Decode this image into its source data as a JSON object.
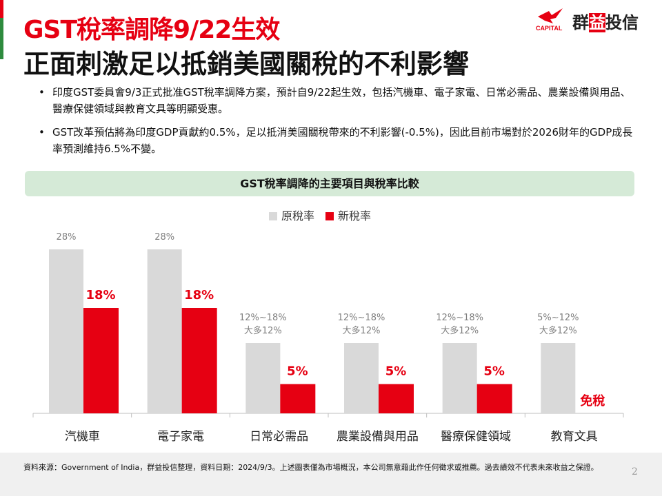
{
  "title_line1": "GST稅率調降9/22生效",
  "title_line2": "正面刺激足以抵銷美國關稅的不利影響",
  "logo": {
    "sub": "CAPITAL",
    "name_a": "群",
    "name_b": "益",
    "name_c": "投信"
  },
  "bullets": [
    "印度GST委員會9/3正式批准GST稅率調降方案，預計自9/22起生效，包括汽機車、電子家電、日常必需品、農業設備與用品、醫療保健領域與教育文具等明顯受惠。",
    "GST改革預估將為印度GDP貢獻約0.5%，足以抵消美國關稅帶來的不利影響(-0.5%)，因此目前市場對於2026財年的GDP成長率預測維持6.5%不變。"
  ],
  "chart_title": "GST稅率調降的主要項目與稅率比較",
  "colors": {
    "old": "#d9d9d9",
    "new": "#e60012"
  },
  "chart_data": {
    "type": "bar",
    "title": "GST稅率調降的主要項目與稅率比較",
    "categories": [
      "汽機車",
      "電子家電",
      "日常必需品",
      "農業設備與用品",
      "醫療保健領域",
      "教育文具"
    ],
    "series": [
      {
        "name": "原稅率",
        "values": [
          28,
          28,
          12,
          12,
          12,
          12
        ],
        "labels": [
          [
            "28%"
          ],
          [
            "28%"
          ],
          [
            "12%~18%",
            "大多12%"
          ],
          [
            "12%~18%",
            "大多12%"
          ],
          [
            "12%~18%",
            "大多12%"
          ],
          [
            "5%~12%",
            "大多12%"
          ]
        ]
      },
      {
        "name": "新稅率",
        "values": [
          18,
          18,
          5,
          5,
          5,
          0
        ],
        "labels": [
          "18%",
          "18%",
          "5%",
          "5%",
          "5%",
          "免稅"
        ]
      }
    ],
    "ylim": [
      0,
      30
    ],
    "legend": "top-center",
    "grid": false
  },
  "footer": {
    "source": "資料來源：Government of India，群益投信整理，資料日期：2024/9/3。上述圖表僅為市場概況，本公司無意藉此作任何徵求或推薦。過去績效不代表未來收益之保證。",
    "page": "2"
  }
}
